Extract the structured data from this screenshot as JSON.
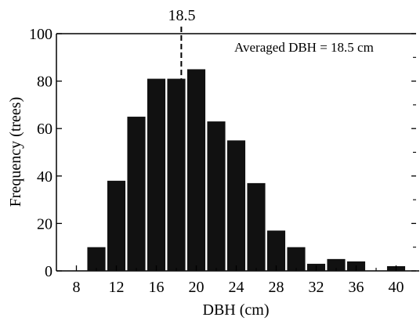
{
  "chart_data": {
    "type": "bar",
    "x": [
      10,
      12,
      14,
      16,
      18,
      20,
      22,
      24,
      26,
      28,
      30,
      32,
      34,
      36,
      38,
      40
    ],
    "values": [
      10,
      38,
      65,
      81,
      81,
      85,
      63,
      55,
      37,
      17,
      10,
      3,
      5,
      4,
      0,
      2
    ],
    "xlabel": "DBH (cm)",
    "ylabel": "Frequency (trees)",
    "xticks": [
      "8",
      "12",
      "16",
      "20",
      "24",
      "28",
      "32",
      "36",
      "40"
    ],
    "yticks": [
      "0",
      "20",
      "40",
      "60",
      "80",
      "100"
    ],
    "xlim": [
      6,
      42
    ],
    "ylim": [
      0,
      100
    ],
    "mean_line": {
      "value": 18.5,
      "label": "18.5"
    },
    "annotation": "Averaged DBH = 18.5 cm",
    "bar_color": "#111111"
  }
}
